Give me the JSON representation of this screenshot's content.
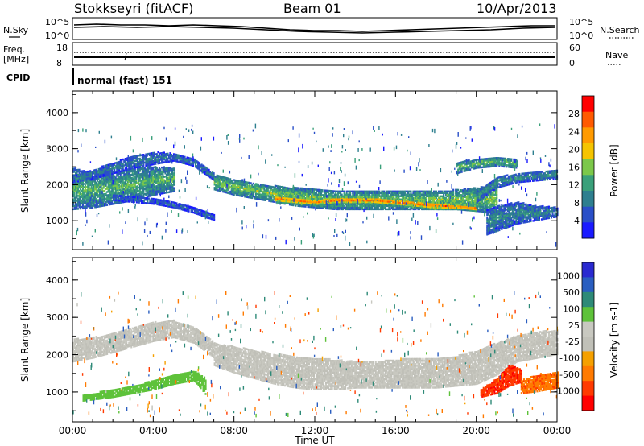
{
  "header": {
    "station": "Stokkseyri (fitACF)",
    "beam": "Beam 01",
    "date": "10/Apr/2013"
  },
  "noise_panel": {
    "left_label": "N.Sky",
    "right_label": "N.Search",
    "ytick_top": "10^5",
    "ytick_bottom": "10^0"
  },
  "freq_panel": {
    "left_label_1": "Freq.",
    "left_label_2": "[MHz]",
    "left_tick_top": "18",
    "left_tick_bottom": "8",
    "right_label": "Nave",
    "right_tick_top": "60",
    "right_tick_bottom": "0"
  },
  "cpid": {
    "label": "CPID",
    "value": "normal (fast) 151"
  },
  "colors": {
    "power": [
      "#1a1aff",
      "#2a4fc8",
      "#2e7f8f",
      "#3aa07a",
      "#7cc84a",
      "#f5c400",
      "#ff9a00",
      "#ff5a00",
      "#ff0000"
    ],
    "velocity": [
      "#2a2ad0",
      "#2a5ec0",
      "#2e8a78",
      "#5ec23a",
      "#c8c8c0",
      "#c0c0b8",
      "#f5a000",
      "#ff7a00",
      "#ff3a00",
      "#ff0000"
    ]
  },
  "chart_data": [
    {
      "type": "heatmap",
      "name": "power",
      "ylabel": "Slant Range [km]",
      "xlim": [
        0,
        24
      ],
      "ylim": [
        200,
        4600
      ],
      "yticks": [
        "1000",
        "2000",
        "3000",
        "4000"
      ],
      "xticks": [
        "00:00",
        "04:00",
        "08:00",
        "12:00",
        "16:00",
        "20:00",
        "00:00"
      ],
      "colorbar": {
        "label": "Power [dB]",
        "ticks": [
          "4",
          "8",
          "12",
          "16",
          "20",
          "24",
          "28"
        ],
        "range": [
          0,
          32
        ]
      },
      "bands": [
        {
          "times": [
            0,
            1,
            2,
            3,
            4,
            5
          ],
          "range_low": [
            1300,
            1350,
            1450,
            1550,
            1700,
            1800
          ],
          "range_high": [
            2450,
            2300,
            2350,
            2450,
            2500,
            2450
          ],
          "power": 14
        },
        {
          "times": [
            0,
            1,
            2,
            3,
            4,
            5,
            6,
            7
          ],
          "range_low": [
            2050,
            2150,
            2300,
            2450,
            2550,
            2650,
            2500,
            2100
          ],
          "range_high": [
            2250,
            2400,
            2600,
            2800,
            2900,
            2850,
            2700,
            2300
          ],
          "power": 9
        },
        {
          "times": [
            2,
            3,
            4,
            5,
            6,
            7
          ],
          "range_low": [
            1550,
            1500,
            1450,
            1350,
            1200,
            1000
          ],
          "range_high": [
            1700,
            1650,
            1600,
            1500,
            1350,
            1150
          ],
          "power": 7
        },
        {
          "times": [
            7,
            8,
            9,
            10,
            11,
            12,
            13,
            14,
            15,
            16,
            17,
            18,
            19,
            20,
            21
          ],
          "range_low": [
            1850,
            1700,
            1600,
            1500,
            1400,
            1350,
            1300,
            1300,
            1300,
            1300,
            1300,
            1300,
            1300,
            1250,
            1200
          ],
          "range_high": [
            2250,
            2150,
            2050,
            1950,
            1900,
            1850,
            1800,
            1800,
            1800,
            1800,
            1800,
            1800,
            1850,
            1900,
            2000
          ],
          "power": 16
        },
        {
          "times": [
            10,
            11,
            12,
            13,
            14,
            15,
            16,
            17,
            18,
            19,
            20
          ],
          "range_low": [
            1500,
            1450,
            1400,
            1450,
            1450,
            1450,
            1400,
            1350,
            1300,
            1300,
            1250
          ],
          "range_high": [
            1700,
            1650,
            1600,
            1650,
            1650,
            1650,
            1600,
            1550,
            1500,
            1450,
            1400
          ],
          "power": 26
        },
        {
          "times": [
            20,
            21,
            22,
            23,
            24
          ],
          "range_low": [
            1500,
            1900,
            2050,
            2100,
            2150
          ],
          "range_high": [
            1800,
            2200,
            2300,
            2350,
            2400
          ],
          "power": 11
        },
        {
          "times": [
            20.5,
            21,
            22,
            23,
            24
          ],
          "range_low": [
            600,
            700,
            900,
            1000,
            1100
          ],
          "range_high": [
            1300,
            1400,
            1500,
            1400,
            1350
          ],
          "power": 10
        },
        {
          "times": [
            19,
            20,
            21,
            22
          ],
          "range_low": [
            2300,
            2450,
            2500,
            2450
          ],
          "range_high": [
            2600,
            2700,
            2750,
            2700
          ],
          "power": 15
        }
      ]
    },
    {
      "type": "heatmap",
      "name": "velocity",
      "ylabel": "Slant Range [km]",
      "xlabel": "Time UT",
      "xlim": [
        0,
        24
      ],
      "ylim": [
        200,
        4600
      ],
      "yticks": [
        "1000",
        "2000",
        "3000",
        "4000"
      ],
      "xticks": [
        "00:00",
        "04:00",
        "08:00",
        "12:00",
        "16:00",
        "20:00",
        "00:00"
      ],
      "colorbar": {
        "label": "Velocity [m s-1]",
        "ticks": [
          "1000",
          "500",
          "100",
          "25",
          "-25",
          "-100",
          "-500",
          "-1000"
        ]
      },
      "bands": [
        {
          "times": [
            0,
            1,
            2,
            3,
            4,
            5,
            6,
            7
          ],
          "range_low": [
            1800,
            1900,
            2050,
            2200,
            2350,
            2450,
            2300,
            1900
          ],
          "range_high": [
            2400,
            2450,
            2550,
            2700,
            2850,
            2900,
            2750,
            2300
          ],
          "velocity": 0
        },
        {
          "times": [
            7,
            8,
            9,
            10,
            11,
            12,
            13,
            14,
            15,
            16,
            17,
            18,
            19,
            20,
            21,
            22,
            23,
            24
          ],
          "range_low": [
            1700,
            1500,
            1350,
            1200,
            1100,
            1050,
            1050,
            1100,
            1100,
            1100,
            1100,
            1100,
            1150,
            1200,
            1450,
            1800,
            1900,
            2000
          ],
          "range_high": [
            2300,
            2200,
            2100,
            2000,
            1950,
            1900,
            1850,
            1800,
            1800,
            1850,
            1900,
            1900,
            1950,
            2100,
            2300,
            2500,
            2600,
            2650
          ],
          "velocity": 0
        },
        {
          "times": [
            0.5,
            1,
            2,
            3,
            4,
            5,
            6,
            6.6
          ],
          "range_low": [
            750,
            780,
            850,
            950,
            1050,
            1200,
            1300,
            900
          ],
          "range_high": [
            900,
            950,
            1050,
            1150,
            1300,
            1450,
            1550,
            1350
          ],
          "velocity": 80
        },
        {
          "times": [
            20.2,
            21,
            21.6,
            22.2
          ],
          "range_low": [
            850,
            950,
            1150,
            1250
          ],
          "range_high": [
            1050,
            1350,
            1700,
            1600
          ],
          "velocity": -900
        },
        {
          "times": [
            22.2,
            23,
            24
          ],
          "range_low": [
            950,
            1000,
            1100
          ],
          "range_high": [
            1300,
            1450,
            1550
          ],
          "velocity": -400
        }
      ]
    }
  ]
}
